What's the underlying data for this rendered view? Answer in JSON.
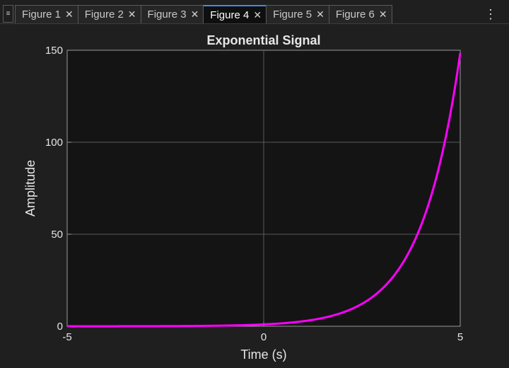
{
  "tabbar": {
    "menu_icon": "hamburger-menu-icon",
    "tabs": [
      {
        "label": "Figure 1",
        "active": false
      },
      {
        "label": "Figure 2",
        "active": false
      },
      {
        "label": "Figure 3",
        "active": false
      },
      {
        "label": "Figure 4",
        "active": true
      },
      {
        "label": "Figure 5",
        "active": false
      },
      {
        "label": "Figure 6",
        "active": false
      }
    ],
    "close_glyph": "✕",
    "more_icon": "vertical-ellipsis-icon"
  },
  "colors": {
    "accent": "#3b8ee8",
    "plot_background": "#141414",
    "line": "#ff00ff",
    "grid": "#5a5a5a"
  },
  "chart_data": {
    "type": "line",
    "title": "Exponential Signal",
    "xlabel": "Time (s)",
    "ylabel": "Amplitude",
    "xlim": [
      -5,
      5
    ],
    "ylim": [
      0,
      150
    ],
    "xticks": [
      -5,
      0,
      5
    ],
    "yticks": [
      0,
      50,
      100,
      150
    ],
    "grid": true,
    "series": [
      {
        "function": "exp(t)",
        "x": [
          -5,
          -4,
          -3,
          -2,
          -1,
          0,
          1,
          2,
          2.5,
          3,
          3.5,
          4,
          4.5,
          5
        ],
        "y": [
          0.0067,
          0.0183,
          0.0498,
          0.1353,
          0.3679,
          1,
          2.718,
          7.389,
          12.18,
          20.09,
          33.12,
          54.6,
          90.02,
          148.41
        ]
      }
    ]
  }
}
